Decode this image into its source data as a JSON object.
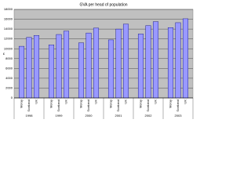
{
  "chart_data": {
    "type": "bar",
    "title": "GVA per head of population",
    "y_label": "£",
    "categories": [
      "Moray",
      "Scotland",
      "UK",
      "Moray",
      "Scotland",
      "UK",
      "Moray",
      "Scotland",
      "UK",
      "Moray",
      "Scotland",
      "UK",
      "Moray",
      "Scotland",
      "UK",
      "Moray",
      "Scotland",
      "UK"
    ],
    "category_groups": [
      "1998",
      "1999",
      "2000",
      "2001",
      "2002",
      "2003"
    ],
    "values": [
      10500,
      12300,
      12700,
      10800,
      12900,
      13600,
      11200,
      13200,
      14200,
      11800,
      14000,
      15000,
      13000,
      14700,
      15500,
      14300,
      15300,
      16100
    ],
    "color": "#9999ff",
    "ylim": [
      0,
      18000
    ],
    "yticks": [
      0,
      2000,
      4000,
      6000,
      8000,
      10000,
      12000,
      14000,
      16000,
      18000
    ],
    "grid": true
  }
}
